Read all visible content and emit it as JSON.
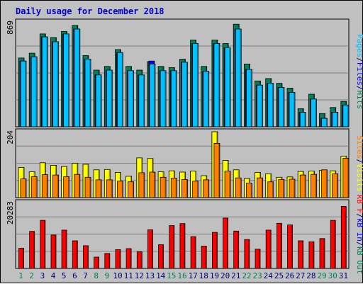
{
  "title": "Daily usage for December 2018",
  "colors": {
    "hits": "#00805c",
    "files": "#0000ff",
    "pages": "#00c0ff",
    "visits": "#ffff00",
    "sites": "#ff8000",
    "kbytes": "#ff0000",
    "kb_in": "#0000ff",
    "kb_out": "#00805c",
    "weekend_label": "#00805c",
    "weekday_label": "#000080",
    "panel_bg": "#c0c0c0",
    "grid": "#808080"
  },
  "chart_data": [
    {
      "type": "bar",
      "name": "hits-files-pages",
      "ylim": [
        0,
        869
      ],
      "axis_label": "869",
      "categories": [
        "1",
        "2",
        "3",
        "4",
        "5",
        "6",
        "7",
        "8",
        "9",
        "10",
        "11",
        "12",
        "13",
        "14",
        "15",
        "16",
        "17",
        "18",
        "19",
        "20",
        "21",
        "22",
        "23",
        "24",
        "25",
        "26",
        "27",
        "28",
        "29",
        "30",
        "31"
      ],
      "series": [
        {
          "name": "Hits",
          "color_key": "hits",
          "values": [
            570,
            610,
            770,
            740,
            790,
            840,
            590,
            470,
            500,
            640,
            500,
            470,
            540,
            500,
            490,
            560,
            720,
            500,
            720,
            690,
            850,
            520,
            380,
            400,
            360,
            320,
            150,
            270,
            110,
            160,
            210
          ]
        },
        {
          "name": "Files",
          "color_key": "files",
          "values": [
            545,
            580,
            745,
            705,
            770,
            810,
            560,
            430,
            470,
            615,
            465,
            430,
            545,
            465,
            465,
            535,
            690,
            460,
            690,
            655,
            810,
            475,
            345,
            360,
            325,
            285,
            120,
            230,
            70,
            120,
            180
          ]
        },
        {
          "name": "Pages",
          "color_key": "pages",
          "values": [
            545,
            580,
            745,
            705,
            770,
            810,
            560,
            430,
            470,
            615,
            465,
            430,
            520,
            465,
            465,
            535,
            690,
            460,
            690,
            655,
            810,
            475,
            345,
            360,
            325,
            285,
            120,
            230,
            70,
            120,
            180
          ]
        }
      ],
      "legend": [
        "Pages",
        "/",
        "Files",
        "/",
        "Hits"
      ]
    },
    {
      "type": "bar",
      "name": "visits-sites",
      "ylim": [
        0,
        204
      ],
      "axis_label": "204",
      "categories": [
        "1",
        "2",
        "3",
        "4",
        "5",
        "6",
        "7",
        "8",
        "9",
        "10",
        "11",
        "12",
        "13",
        "14",
        "15",
        "16",
        "17",
        "18",
        "19",
        "20",
        "21",
        "22",
        "23",
        "24",
        "25",
        "26",
        "27",
        "28",
        "29",
        "30",
        "31"
      ],
      "series": [
        {
          "name": "Visits",
          "color_key": "visits",
          "values": [
            93,
            80,
            108,
            100,
            96,
            106,
            103,
            86,
            87,
            78,
            66,
            123,
            121,
            80,
            83,
            79,
            82,
            68,
            204,
            115,
            86,
            59,
            78,
            74,
            63,
            64,
            81,
            82,
            84,
            83,
            128
          ]
        },
        {
          "name": "Sites",
          "color_key": "sites",
          "values": [
            58,
            65,
            71,
            70,
            65,
            72,
            63,
            55,
            55,
            51,
            49,
            77,
            79,
            63,
            60,
            56,
            51,
            55,
            168,
            82,
            61,
            45,
            61,
            49,
            56,
            57,
            70,
            72,
            86,
            74,
            122
          ]
        }
      ],
      "legend": [
        "Visits",
        "/",
        "Sites"
      ]
    },
    {
      "type": "bar",
      "name": "kbytes",
      "ylim": [
        0,
        20283
      ],
      "axis_label": "20283",
      "categories": [
        "1",
        "2",
        "3",
        "4",
        "5",
        "6",
        "7",
        "8",
        "9",
        "10",
        "11",
        "12",
        "13",
        "14",
        "15",
        "16",
        "17",
        "18",
        "19",
        "20",
        "21",
        "22",
        "23",
        "24",
        "25",
        "26",
        "27",
        "28",
        "29",
        "30",
        "31"
      ],
      "series": [
        {
          "name": "KBytes",
          "color_key": "kbytes",
          "values": [
            6200,
            11400,
            14800,
            10300,
            11800,
            8500,
            7000,
            3500,
            4600,
            5800,
            6100,
            5100,
            11900,
            7300,
            13200,
            13800,
            9800,
            6900,
            11100,
            15500,
            11500,
            8900,
            5900,
            11800,
            13900,
            13400,
            8500,
            8200,
            9200,
            14800,
            19100
          ]
        }
      ],
      "legend": [
        "KBytes",
        "/",
        "KB In",
        "/",
        "KB Out"
      ]
    }
  ],
  "legends": {
    "top": [
      {
        "text": "Pages",
        "color_key": "pages"
      },
      {
        "text": "/",
        "color_key": "weekday_label"
      },
      {
        "text": "Files",
        "color_key": "files"
      },
      {
        "text": "/",
        "color_key": "weekday_label"
      },
      {
        "text": "Hits",
        "color_key": "hits"
      }
    ],
    "mid": [
      {
        "text": "Sites",
        "color_key": "sites"
      },
      {
        "text": "/",
        "color_key": "weekday_label"
      },
      {
        "text": "Visits",
        "color_key": "visits"
      }
    ],
    "bottom": [
      {
        "text": "kB F",
        "color_key": "kbytes"
      },
      {
        "text": "/",
        "color_key": "weekday_label"
      },
      {
        "text": "kB In",
        "color_key": "kb_in"
      },
      {
        "text": "/",
        "color_key": "weekday_label"
      },
      {
        "text": "kB Out",
        "color_key": "kb_out"
      }
    ]
  },
  "weekend_days": [
    "1",
    "2",
    "8",
    "9",
    "15",
    "16",
    "22",
    "23",
    "29",
    "30"
  ]
}
